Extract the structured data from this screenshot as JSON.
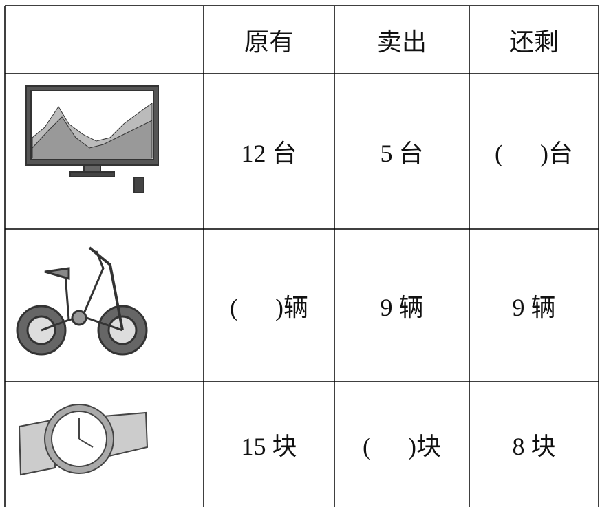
{
  "table": {
    "header": [
      "原有",
      "卖出",
      "还剩"
    ],
    "rows": [
      [
        "12 台",
        "5 台",
        "(      )台"
      ],
      [
        "(      )辆",
        "9 辆",
        "9 辆"
      ],
      [
        "15 块",
        "(      )块",
        "8 块"
      ]
    ]
  }
}
